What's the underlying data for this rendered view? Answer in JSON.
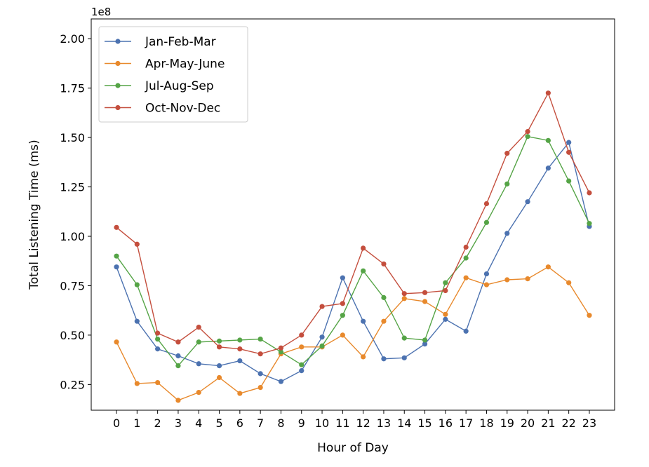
{
  "chart_data": {
    "type": "line",
    "xlabel": "Hour of Day",
    "ylabel": "Total Listening Time (ms)",
    "offset_label": "1e8",
    "x": [
      0,
      1,
      2,
      3,
      4,
      5,
      6,
      7,
      8,
      9,
      10,
      11,
      12,
      13,
      14,
      15,
      16,
      17,
      18,
      19,
      20,
      21,
      22,
      23
    ],
    "xlim": [
      -1.23,
      24.23
    ],
    "ylim": [
      0.12,
      2.1
    ],
    "yticks": [
      0.25,
      0.5,
      0.75,
      1.0,
      1.25,
      1.5,
      1.75,
      2.0
    ],
    "ytick_labels": [
      "0.25",
      "0.50",
      "0.75",
      "1.00",
      "1.25",
      "1.50",
      "1.75",
      "2.00"
    ],
    "grid": false,
    "legend_position": "top-left",
    "series": [
      {
        "name": "Jan-Feb-Mar",
        "color": "#4c72b0",
        "values": [
          0.845,
          0.57,
          0.43,
          0.395,
          0.355,
          0.345,
          0.37,
          0.305,
          0.265,
          0.32,
          0.49,
          0.79,
          0.57,
          0.38,
          0.385,
          0.455,
          0.58,
          0.52,
          0.81,
          1.015,
          1.175,
          1.345,
          1.475,
          1.05
        ]
      },
      {
        "name": "Apr-May-June",
        "color": "#e8892c",
        "values": [
          0.465,
          0.255,
          0.26,
          0.17,
          0.21,
          0.285,
          0.205,
          0.235,
          0.405,
          0.44,
          0.44,
          0.5,
          0.39,
          0.57,
          0.685,
          0.67,
          0.605,
          0.79,
          0.755,
          0.78,
          0.785,
          0.845,
          0.765,
          0.6
        ]
      },
      {
        "name": "Jul-Aug-Sep",
        "color": "#55a446",
        "values": [
          0.9,
          0.755,
          0.48,
          0.345,
          0.465,
          0.47,
          0.475,
          0.48,
          0.415,
          0.35,
          0.445,
          0.6,
          0.825,
          0.69,
          0.485,
          0.475,
          0.765,
          0.89,
          1.07,
          1.265,
          1.505,
          1.485,
          1.28,
          1.065
        ]
      },
      {
        "name": "Oct-Nov-Dec",
        "color": "#c44e3d",
        "values": [
          1.045,
          0.96,
          0.51,
          0.465,
          0.54,
          0.44,
          0.43,
          0.405,
          0.435,
          0.5,
          0.645,
          0.66,
          0.94,
          0.86,
          0.71,
          0.715,
          0.725,
          0.945,
          1.165,
          1.42,
          1.53,
          1.725,
          1.425,
          1.22
        ]
      }
    ]
  }
}
